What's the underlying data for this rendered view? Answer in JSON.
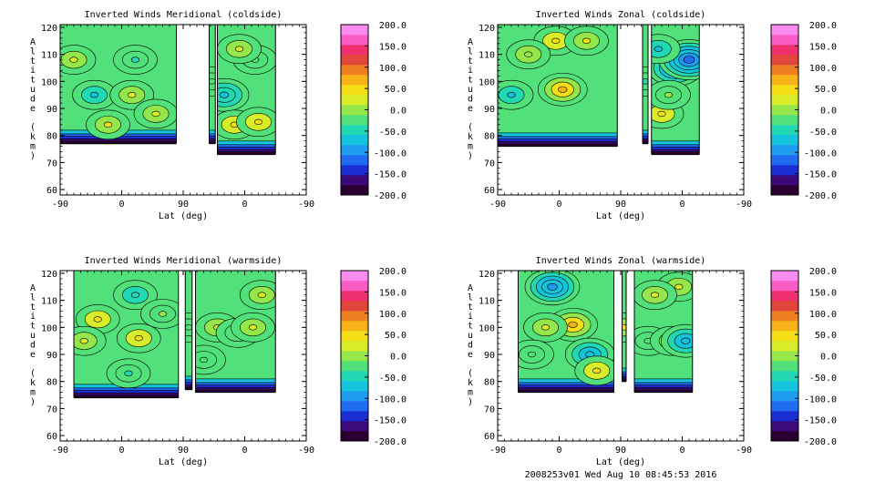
{
  "footer": "2008253v01 Wed Aug 10 08:45:53 2016",
  "chart_data": [
    {
      "type": "heatmap",
      "title": "Inverted Winds Meridional (coldside)",
      "xlabel": "Lat (deg)",
      "ylabel": "Altitude (km)",
      "xticks": [
        "-90",
        "0",
        "90",
        "0",
        "-90"
      ],
      "yticks": [
        "60",
        "70",
        "80",
        "90",
        "100",
        "110",
        "120"
      ],
      "ylim": [
        58,
        121
      ],
      "colorbar": {
        "ticks": [
          "200.0",
          "150.0",
          "100.0",
          "50.0",
          "0.0",
          "-50.0",
          "-100.0",
          "-150.0",
          "-200.0"
        ],
        "range": [
          -200,
          200
        ]
      },
      "segments": [
        {
          "lat_range": [
            -90,
            80
          ],
          "alt_bottom": 77,
          "features": [
            {
              "lat": -70,
              "alt": 108,
              "value": 35
            },
            {
              "lat": -40,
              "alt": 95,
              "value": -60
            },
            {
              "lat": 15,
              "alt": 95,
              "value": 30
            },
            {
              "lat": 20,
              "alt": 108,
              "value": -45
            },
            {
              "lat": -20,
              "alt": 84,
              "value": 40
            },
            {
              "lat": 50,
              "alt": 88,
              "value": 25
            }
          ]
        },
        {
          "lat_range": [
            128,
            137
          ],
          "alt_bottom": 77,
          "features": [
            {
              "lat": 132,
              "alt": 100,
              "value": -20
            }
          ]
        },
        {
          "lat_range": [
            140,
            225
          ],
          "alt_bottom": 73,
          "features": [
            {
              "lat": 150,
              "alt": 95,
              "value": -70
            },
            {
              "lat": 165,
              "alt": 84,
              "value": 45
            },
            {
              "lat": 200,
              "alt": 85,
              "value": 55
            },
            {
              "lat": 195,
              "alt": 108,
              "value": -30
            },
            {
              "lat": 172,
              "alt": 112,
              "value": 20
            }
          ]
        }
      ]
    },
    {
      "type": "heatmap",
      "title": "Inverted Winds Zonal (coldside)",
      "xlabel": "Lat (deg)",
      "ylabel": "Altitude (km)",
      "xticks": [
        "-90",
        "0",
        "90",
        "0",
        "-90"
      ],
      "yticks": [
        "60",
        "70",
        "80",
        "90",
        "100",
        "110",
        "120"
      ],
      "ylim": [
        58,
        121
      ],
      "colorbar": {
        "ticks": [
          "200.0",
          "150.0",
          "100.0",
          "50.0",
          "0.0",
          "-50.0",
          "-100.0",
          "-150.0",
          "-200.0"
        ],
        "range": [
          -200,
          200
        ]
      },
      "segments": [
        {
          "lat_range": [
            -90,
            85
          ],
          "alt_bottom": 76,
          "features": [
            {
              "lat": -70,
              "alt": 95,
              "value": -60
            },
            {
              "lat": 5,
              "alt": 97,
              "value": 65
            },
            {
              "lat": -5,
              "alt": 115,
              "value": 45
            },
            {
              "lat": 40,
              "alt": 115,
              "value": 40
            },
            {
              "lat": -45,
              "alt": 110,
              "value": 10
            }
          ]
        },
        {
          "lat_range": [
            122,
            130
          ],
          "alt_bottom": 77,
          "features": [
            {
              "lat": 126,
              "alt": 100,
              "value": -40
            }
          ]
        },
        {
          "lat_range": [
            135,
            205
          ],
          "alt_bottom": 73,
          "features": [
            {
              "lat": 150,
              "alt": 88,
              "value": 45
            },
            {
              "lat": 170,
              "alt": 105,
              "value": -110
            },
            {
              "lat": 190,
              "alt": 108,
              "value": -120
            },
            {
              "lat": 160,
              "alt": 95,
              "value": -10
            },
            {
              "lat": 145,
              "alt": 112,
              "value": -60
            }
          ]
        }
      ]
    },
    {
      "type": "heatmap",
      "title": "Inverted Winds Meridional (warmside)",
      "xlabel": "Lat (deg)",
      "ylabel": "Altitude (km)",
      "xticks": [
        "-90",
        "0",
        "90",
        "0",
        "-90"
      ],
      "yticks": [
        "60",
        "70",
        "80",
        "90",
        "100",
        "110",
        "120"
      ],
      "ylim": [
        58,
        121
      ],
      "colorbar": {
        "ticks": [
          "200.0",
          "150.0",
          "100.0",
          "50.0",
          "0.0",
          "-50.0",
          "-100.0",
          "-150.0",
          "-200.0"
        ],
        "range": [
          -200,
          200
        ]
      },
      "segments": [
        {
          "lat_range": [
            -70,
            83
          ],
          "alt_bottom": 74,
          "features": [
            {
              "lat": -35,
              "alt": 103,
              "value": 55
            },
            {
              "lat": 25,
              "alt": 96,
              "value": 50
            },
            {
              "lat": 20,
              "alt": 112,
              "value": -55
            },
            {
              "lat": -55,
              "alt": 95,
              "value": 25
            },
            {
              "lat": 10,
              "alt": 83,
              "value": -40
            },
            {
              "lat": 60,
              "alt": 105,
              "value": -10
            }
          ]
        },
        {
          "lat_range": [
            93,
            103
          ],
          "alt_bottom": 77,
          "features": [
            {
              "lat": 98,
              "alt": 100,
              "value": -20
            }
          ]
        },
        {
          "lat_range": [
            108,
            225
          ],
          "alt_bottom": 76,
          "features": [
            {
              "lat": 140,
              "alt": 100,
              "value": 35
            },
            {
              "lat": 170,
              "alt": 98,
              "value": -40
            },
            {
              "lat": 192,
              "alt": 100,
              "value": 35
            },
            {
              "lat": 205,
              "alt": 112,
              "value": 30
            },
            {
              "lat": 120,
              "alt": 88,
              "value": -30
            }
          ]
        }
      ]
    },
    {
      "type": "heatmap",
      "title": "Inverted Winds Zonal (warmside)",
      "xlabel": "Lat (deg)",
      "ylabel": "Altitude (km)",
      "xticks": [
        "-90",
        "0",
        "90",
        "0",
        "-90"
      ],
      "yticks": [
        "60",
        "70",
        "80",
        "90",
        "100",
        "110",
        "120"
      ],
      "ylim": [
        58,
        121
      ],
      "colorbar": {
        "ticks": [
          "200.0",
          "150.0",
          "100.0",
          "50.0",
          "0.0",
          "-50.0",
          "-100.0",
          "-150.0",
          "-200.0"
        ],
        "range": [
          -200,
          200
        ]
      },
      "segments": [
        {
          "lat_range": [
            -60,
            80
          ],
          "alt_bottom": 76,
          "features": [
            {
              "lat": 20,
              "alt": 101,
              "value": 70
            },
            {
              "lat": -20,
              "alt": 100,
              "value": 35
            },
            {
              "lat": -10,
              "alt": 115,
              "value": -100
            },
            {
              "lat": 45,
              "alt": 90,
              "value": -80
            },
            {
              "lat": 55,
              "alt": 84,
              "value": 50
            },
            {
              "lat": -40,
              "alt": 90,
              "value": -20
            }
          ]
        },
        {
          "lat_range": [
            92,
            98
          ],
          "alt_bottom": 80,
          "features": [
            {
              "lat": 95,
              "alt": 100,
              "value": 40
            }
          ]
        },
        {
          "lat_range": [
            110,
            195
          ],
          "alt_bottom": 76,
          "features": [
            {
              "lat": 130,
              "alt": 95,
              "value": -20
            },
            {
              "lat": 165,
              "alt": 95,
              "value": 35
            },
            {
              "lat": 185,
              "alt": 95,
              "value": -80
            },
            {
              "lat": 175,
              "alt": 115,
              "value": 20
            },
            {
              "lat": 140,
              "alt": 112,
              "value": 25
            }
          ]
        }
      ]
    }
  ]
}
